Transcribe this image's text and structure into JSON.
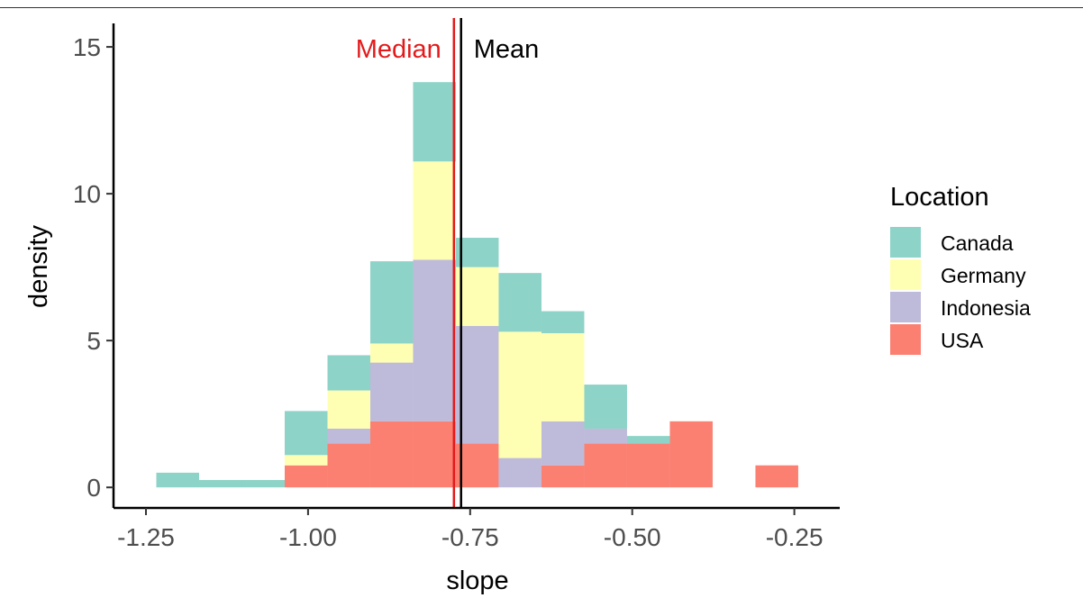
{
  "chart_data": {
    "type": "bar",
    "stacked": true,
    "xlabel": "slope",
    "ylabel": "density",
    "xlim": [
      -1.3,
      -0.18
    ],
    "ylim": [
      -0.7,
      15.8
    ],
    "x_ticks": [
      -1.25,
      -1.0,
      -0.75,
      -0.5,
      -0.25
    ],
    "x_tick_labels": [
      "-1.25",
      "-1.00",
      "-0.75",
      "-0.50",
      "-0.25"
    ],
    "y_ticks": [
      0,
      5,
      10,
      15
    ],
    "y_tick_labels": [
      "0",
      "5",
      "10",
      "15"
    ],
    "bins": [
      {
        "x0": -1.234,
        "x1": -1.168
      },
      {
        "x0": -1.168,
        "x1": -1.102
      },
      {
        "x0": -1.102,
        "x1": -1.036
      },
      {
        "x0": -1.036,
        "x1": -0.97
      },
      {
        "x0": -0.97,
        "x1": -0.904
      },
      {
        "x0": -0.904,
        "x1": -0.838
      },
      {
        "x0": -0.838,
        "x1": -0.772
      },
      {
        "x0": -0.772,
        "x1": -0.706
      },
      {
        "x0": -0.706,
        "x1": -0.64
      },
      {
        "x0": -0.64,
        "x1": -0.574
      },
      {
        "x0": -0.574,
        "x1": -0.508
      },
      {
        "x0": -0.508,
        "x1": -0.442
      },
      {
        "x0": -0.442,
        "x1": -0.376
      },
      {
        "x0": -0.376,
        "x1": -0.31
      },
      {
        "x0": -0.31,
        "x1": -0.244
      }
    ],
    "series": [
      {
        "name": "USA",
        "color": "#fb8072",
        "values": [
          0,
          0,
          0,
          0.75,
          1.5,
          2.25,
          2.25,
          1.5,
          0,
          0.75,
          1.5,
          1.5,
          2.25,
          0,
          0.75
        ]
      },
      {
        "name": "Indonesia",
        "color": "#bebada",
        "values": [
          0,
          0,
          0,
          0,
          0.5,
          2.0,
          5.5,
          4.0,
          1.0,
          1.5,
          0.5,
          0,
          0,
          0,
          0
        ]
      },
      {
        "name": "Germany",
        "color": "#ffffb3",
        "values": [
          0,
          0,
          0,
          0.35,
          1.3,
          0.65,
          3.35,
          2.0,
          4.3,
          3.0,
          0,
          0,
          0,
          0,
          0
        ]
      },
      {
        "name": "Canada",
        "color": "#8dd3c7",
        "values": [
          0.5,
          0.25,
          0.25,
          1.5,
          1.2,
          2.8,
          2.7,
          1.0,
          2.0,
          0.75,
          1.5,
          0.25,
          0,
          0,
          0
        ]
      }
    ],
    "vlines": [
      {
        "label": "Median",
        "x": -0.775,
        "color": "#e31a1c"
      },
      {
        "label": "Mean",
        "x": -0.764,
        "color": "#000000"
      }
    ],
    "legend": {
      "title": "Location",
      "position": "right",
      "entries": [
        {
          "label": "Canada",
          "color": "#8dd3c7"
        },
        {
          "label": "Germany",
          "color": "#ffffb3"
        },
        {
          "label": "Indonesia",
          "color": "#bebada"
        },
        {
          "label": "USA",
          "color": "#fb8072"
        }
      ]
    },
    "grid": false
  }
}
